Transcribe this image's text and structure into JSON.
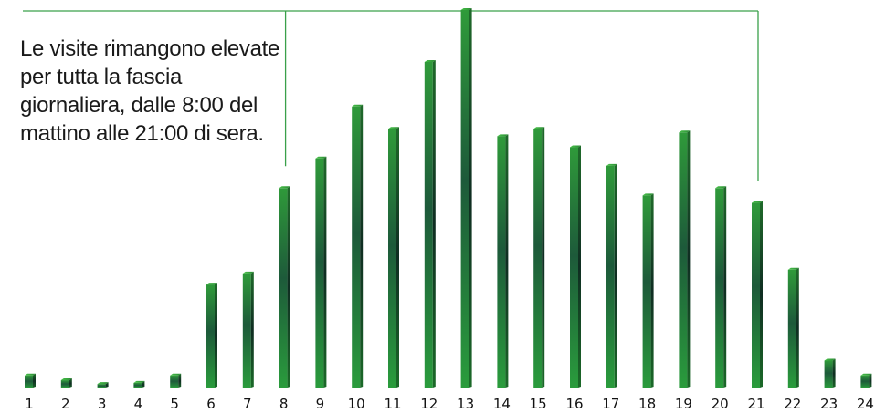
{
  "chart_data": {
    "type": "bar",
    "categories": [
      "1",
      "2",
      "3",
      "4",
      "5",
      "6",
      "7",
      "8",
      "9",
      "10",
      "11",
      "12",
      "13",
      "14",
      "15",
      "16",
      "17",
      "18",
      "19",
      "20",
      "21",
      "22",
      "23",
      "24"
    ],
    "values": [
      3.5,
      2.2,
      1.2,
      1.5,
      3.5,
      28,
      31,
      54,
      62,
      76,
      70,
      88,
      102,
      68,
      70,
      65,
      60,
      52,
      69,
      54,
      50,
      32,
      7.5,
      3.5
    ],
    "ylim": [
      0,
      102
    ],
    "annotation": "Le visite rimangono elevate per tutta la fascia giornaliera, dalle 8:00 del mattino alle 21:00 di sera.",
    "bracket": {
      "from": "8",
      "to": "21",
      "peak": "13"
    },
    "colors": {
      "bar_light": "#3fae3f",
      "bar_mid": "#1f7a2e",
      "bar_dark": "#163a30",
      "bracket": "#3aa04a"
    },
    "grid": false,
    "legend": "none"
  }
}
